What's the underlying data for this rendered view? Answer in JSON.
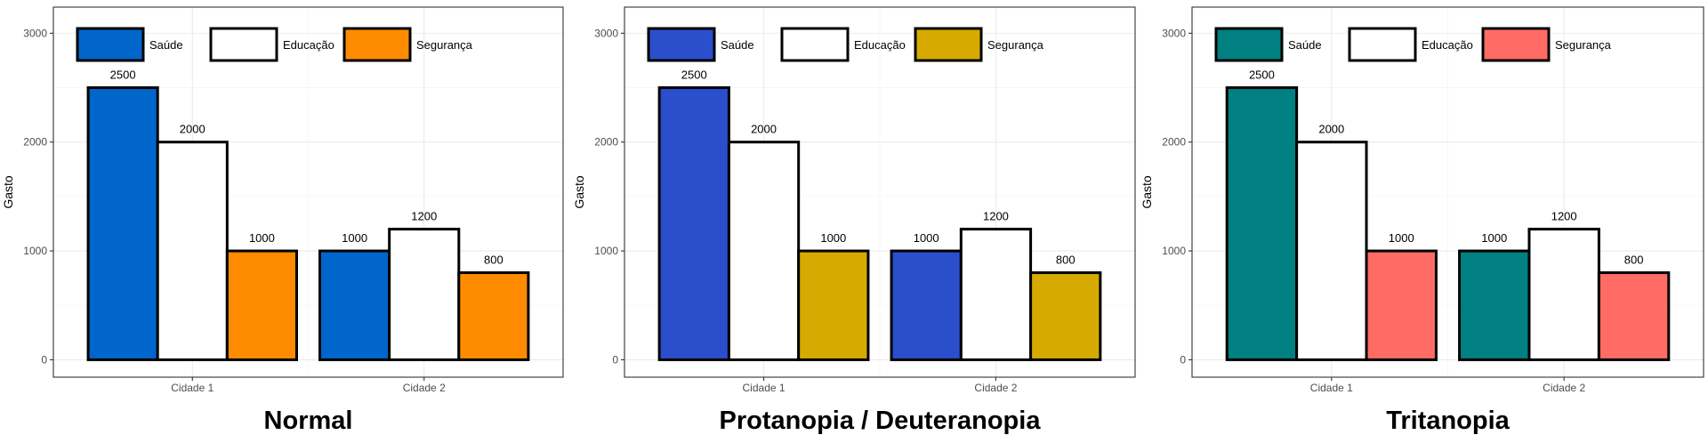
{
  "chart_data": [
    {
      "type": "bar",
      "caption": "Normal",
      "categories": [
        "Cidade 1",
        "Cidade 2"
      ],
      "series": [
        {
          "name": "Saúde",
          "values": [
            2500,
            1000
          ],
          "color": "#0066CC"
        },
        {
          "name": "Educação",
          "values": [
            2000,
            1200
          ],
          "color": "#FFFFFF"
        },
        {
          "name": "Segurança",
          "values": [
            1000,
            800
          ],
          "color": "#FF8C00"
        }
      ],
      "ylabel": "Gasto",
      "ylim": [
        -160,
        3240
      ],
      "yticks": [
        0,
        1000,
        2000,
        3000
      ],
      "legend": "top-left",
      "grid": true
    },
    {
      "type": "bar",
      "caption": "Protanopia / Deuteranopia",
      "categories": [
        "Cidade 1",
        "Cidade 2"
      ],
      "series": [
        {
          "name": "Saúde",
          "values": [
            2500,
            1000
          ],
          "color": "#2B4ECC"
        },
        {
          "name": "Educação",
          "values": [
            2000,
            1200
          ],
          "color": "#FFFFFF"
        },
        {
          "name": "Segurança",
          "values": [
            1000,
            800
          ],
          "color": "#D6AA00"
        }
      ],
      "ylabel": "Gasto",
      "ylim": [
        -160,
        3240
      ],
      "yticks": [
        0,
        1000,
        2000,
        3000
      ],
      "legend": "top-left",
      "grid": true
    },
    {
      "type": "bar",
      "caption": "Tritanopia",
      "categories": [
        "Cidade 1",
        "Cidade 2"
      ],
      "series": [
        {
          "name": "Saúde",
          "values": [
            2500,
            1000
          ],
          "color": "#008080"
        },
        {
          "name": "Educação",
          "values": [
            2000,
            1200
          ],
          "color": "#FFFFFF"
        },
        {
          "name": "Segurança",
          "values": [
            1000,
            800
          ],
          "color": "#FF6B65"
        }
      ],
      "ylabel": "Gasto",
      "ylim": [
        -160,
        3240
      ],
      "yticks": [
        0,
        1000,
        2000,
        3000
      ],
      "legend": "top-left",
      "grid": true
    }
  ]
}
